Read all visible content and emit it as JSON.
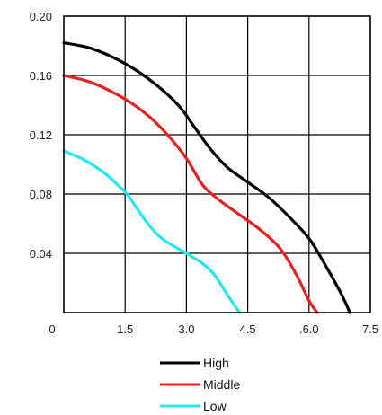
{
  "chart_data": {
    "type": "line",
    "title": "",
    "xlabel": "",
    "ylabel": "",
    "xlim": [
      0,
      7.5
    ],
    "ylim": [
      0,
      0.2
    ],
    "x_tick_values": [
      0,
      1.5,
      3.0,
      4.5,
      6.0,
      7.5
    ],
    "x_tick_labels": [
      "0",
      "1.5",
      "3.0",
      "4.5",
      ".6.0",
      "7.5"
    ],
    "y_tick_values": [
      0.04,
      0.08,
      0.12,
      0.16,
      0.2
    ],
    "y_tick_labels": [
      "0.04",
      "0.08",
      "0.12",
      "0.16",
      "0.20"
    ],
    "grid": true,
    "legend_position": "bottom-center",
    "series": [
      {
        "name": "High",
        "color": "#000000",
        "points": [
          [
            0,
            0.182
          ],
          [
            0.7,
            0.178
          ],
          [
            1.5,
            0.168
          ],
          [
            2.2,
            0.155
          ],
          [
            2.8,
            0.14
          ],
          [
            3.2,
            0.125
          ],
          [
            3.6,
            0.11
          ],
          [
            4.0,
            0.098
          ],
          [
            4.5,
            0.088
          ],
          [
            5.0,
            0.078
          ],
          [
            5.5,
            0.065
          ],
          [
            6.0,
            0.05
          ],
          [
            6.4,
            0.032
          ],
          [
            6.8,
            0.012
          ],
          [
            7.0,
            0.0
          ]
        ]
      },
      {
        "name": "Middle",
        "color": "#e82020",
        "points": [
          [
            0,
            0.16
          ],
          [
            0.7,
            0.155
          ],
          [
            1.5,
            0.144
          ],
          [
            2.1,
            0.132
          ],
          [
            2.6,
            0.118
          ],
          [
            3.0,
            0.104
          ],
          [
            3.4,
            0.086
          ],
          [
            3.8,
            0.076
          ],
          [
            4.3,
            0.066
          ],
          [
            4.8,
            0.056
          ],
          [
            5.3,
            0.043
          ],
          [
            5.7,
            0.025
          ],
          [
            6.0,
            0.008
          ],
          [
            6.2,
            0.0
          ]
        ]
      },
      {
        "name": "Low",
        "color": "#22e6f0",
        "points": [
          [
            0,
            0.109
          ],
          [
            0.5,
            0.103
          ],
          [
            1.0,
            0.094
          ],
          [
            1.4,
            0.084
          ],
          [
            1.6,
            0.078
          ],
          [
            2.0,
            0.062
          ],
          [
            2.4,
            0.05
          ],
          [
            3.0,
            0.04
          ],
          [
            3.4,
            0.033
          ],
          [
            3.7,
            0.025
          ],
          [
            4.0,
            0.012
          ],
          [
            4.3,
            0.0
          ]
        ]
      }
    ]
  }
}
